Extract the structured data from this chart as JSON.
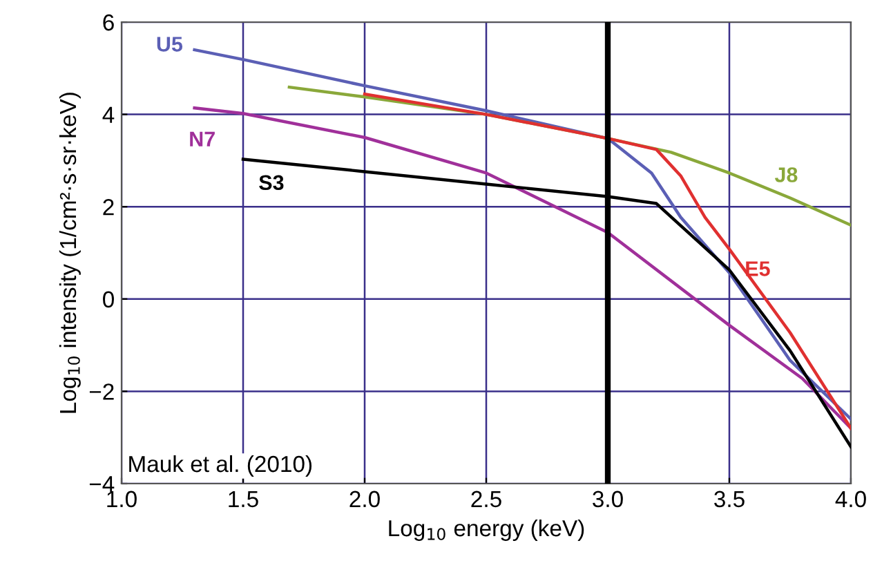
{
  "chart_data": {
    "type": "line",
    "xlabel": "Log$_{10}$ energy (keV)",
    "ylabel": "Log$_{10}$ intensity (1/cm²·s·sr·keV)",
    "xlim": [
      1.0,
      4.0
    ],
    "ylim": [
      -4,
      6
    ],
    "xticks": [
      {
        "value": 1.0,
        "label": "1.0"
      },
      {
        "value": 1.5,
        "label": "1.5"
      },
      {
        "value": 2.0,
        "label": "2.0"
      },
      {
        "value": 2.5,
        "label": "2.5"
      },
      {
        "value": 3.0,
        "label": "3.0"
      },
      {
        "value": 3.5,
        "label": "3.5"
      },
      {
        "value": 4.0,
        "label": "4.0"
      }
    ],
    "yticks": [
      -4,
      -2,
      0,
      2,
      4,
      6
    ],
    "grid": true,
    "legend": false,
    "marker": "none",
    "line_style": "solid",
    "ref_lines": [
      {
        "axis": "x",
        "value": 3.0,
        "color": "#000000"
      }
    ],
    "annotations": [
      "Mauk et al. (2010)"
    ],
    "series": [
      {
        "name": "U5",
        "color": "#5b5fb5",
        "x": [
          1.3,
          1.5,
          2.0,
          2.5,
          3.0,
          3.18,
          3.3,
          3.5,
          3.75,
          4.0
        ],
        "values": [
          5.4,
          5.19,
          4.62,
          4.08,
          3.48,
          2.73,
          1.77,
          0.57,
          -1.33,
          -2.6
        ]
      },
      {
        "name": "N7",
        "color": "#a0309a",
        "x": [
          1.3,
          1.5,
          2.0,
          2.5,
          3.0,
          3.5,
          3.8,
          4.0
        ],
        "values": [
          4.14,
          4.02,
          3.5,
          2.73,
          1.44,
          -0.57,
          -1.72,
          -2.8
        ]
      },
      {
        "name": "S3",
        "color": "#000000",
        "x": [
          1.5,
          2.0,
          2.5,
          3.0,
          3.2,
          3.3,
          3.5,
          3.75,
          4.0
        ],
        "values": [
          3.03,
          2.76,
          2.49,
          2.22,
          2.07,
          1.59,
          0.63,
          -1.12,
          -3.2
        ]
      },
      {
        "name": "J8",
        "color": "#8aa83a",
        "x": [
          1.69,
          2.0,
          2.5,
          3.0,
          3.26,
          3.5,
          3.75,
          4.0
        ],
        "values": [
          4.59,
          4.38,
          4.0,
          3.48,
          3.18,
          2.73,
          2.19,
          1.6
        ]
      },
      {
        "name": "E5",
        "color": "#e03030",
        "x": [
          2.0,
          2.5,
          3.0,
          3.2,
          3.3,
          3.4,
          3.5,
          3.75,
          4.0
        ],
        "values": [
          4.44,
          4.0,
          3.48,
          3.24,
          2.67,
          1.77,
          1.08,
          -0.73,
          -2.8
        ]
      }
    ]
  }
}
